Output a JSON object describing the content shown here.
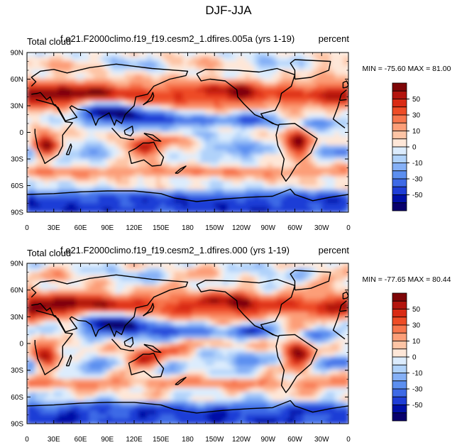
{
  "title": "DJF-JJA",
  "colors": {
    "levels": [
      "#08006d",
      "#0010a7",
      "#1f3ed6",
      "#3e6ae6",
      "#5c8ff0",
      "#85b0f6",
      "#b0d2fa",
      "#dcecfd",
      "#fee7d8",
      "#fdc4a5",
      "#fc9e78",
      "#f7764d",
      "#ee4c26",
      "#d92b14",
      "#b3150e",
      "#7e0608"
    ],
    "coast": "#000000"
  },
  "chart_data": [
    {
      "type": "heatmap",
      "left_title": "Total cloud",
      "center_title": "f.e21.F2000climo.f19_f19.cesm2_1.dfires.005a (yrs 1-19)",
      "right_title": "percent",
      "stats": "MIN = -75.60 MAX =  81.00",
      "xticks": [
        "0",
        "30E",
        "60E",
        "90E",
        "120E",
        "150E",
        "180",
        "150W",
        "120W",
        "90W",
        "60W",
        "30W",
        "0"
      ],
      "yticks": [
        "90N",
        "60N",
        "30N",
        "0",
        "30S",
        "60S",
        "90S"
      ],
      "colorbar_labels": [
        "50",
        "30",
        "10",
        "0",
        "-10",
        "-30",
        "-50"
      ],
      "xlim": [
        0,
        360
      ],
      "ylim": [
        -90,
        90
      ]
    },
    {
      "type": "heatmap",
      "left_title": "Total cloud",
      "center_title": "f.e21.F2000climo.f19_f19.cesm2_1.dfires.000 (yrs 1-19)",
      "right_title": "percent",
      "stats": "MIN = -77.65 MAX =  80.44",
      "xticks": [
        "0",
        "30E",
        "60E",
        "90E",
        "120E",
        "150E",
        "180",
        "150W",
        "120W",
        "90W",
        "60W",
        "30W",
        "0"
      ],
      "yticks": [
        "90N",
        "60N",
        "30N",
        "0",
        "30S",
        "60S",
        "90S"
      ],
      "colorbar_labels": [
        "50",
        "30",
        "10",
        "0",
        "-10",
        "-30",
        "-50"
      ],
      "xlim": [
        0,
        360
      ],
      "ylim": [
        -90,
        90
      ]
    }
  ]
}
